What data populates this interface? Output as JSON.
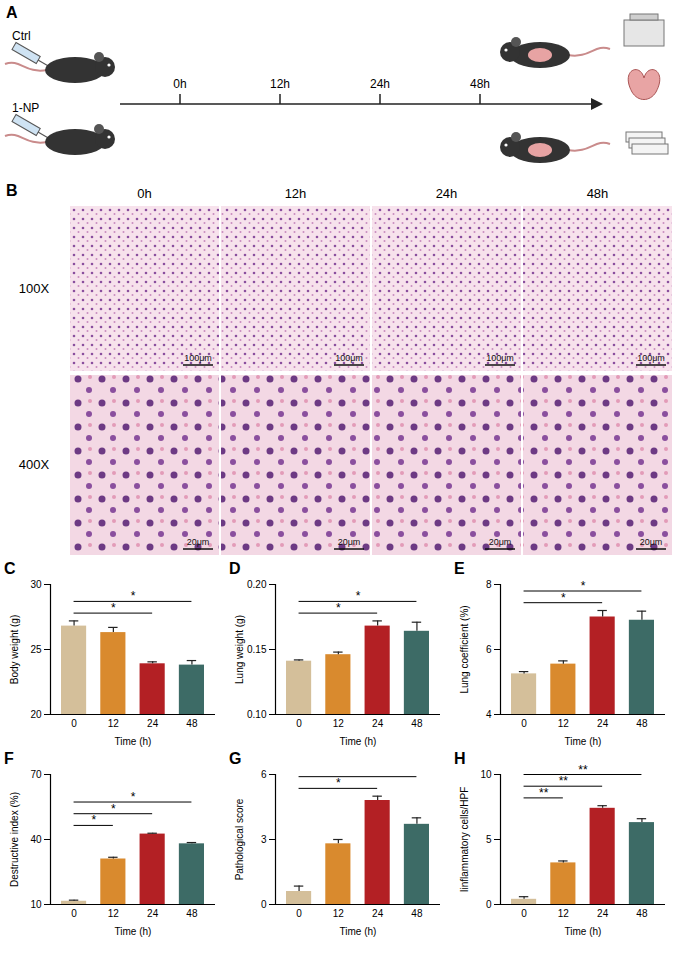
{
  "panel_a": {
    "panel": "A",
    "groups": [
      "Ctrl",
      "1-NP"
    ],
    "timepoints": [
      "0h",
      "12h",
      "24h",
      "48h"
    ]
  },
  "panel_b": {
    "panel": "B",
    "columns": [
      "0h",
      "12h",
      "24h",
      "48h"
    ],
    "rows": [
      "100X",
      "400X"
    ],
    "scale_bars": [
      "100μm",
      "20μm"
    ]
  },
  "chart_data": [
    {
      "panel": "C",
      "type": "bar",
      "ylabel": "Body weight (g)",
      "xlabel": "Time (h)",
      "categories": [
        "0",
        "12",
        "24",
        "48"
      ],
      "values": [
        26.8,
        26.3,
        23.9,
        23.8
      ],
      "errors": [
        0.4,
        0.4,
        0.15,
        0.35
      ],
      "colors": [
        "#d4bf9a",
        "#d98a2e",
        "#b32024",
        "#3d6b66"
      ],
      "ylim": [
        20,
        30
      ],
      "yticks": [
        20,
        25,
        30
      ],
      "comparisons": [
        {
          "from": "0",
          "to": "24",
          "label": "*"
        },
        {
          "from": "0",
          "to": "48",
          "label": "*"
        }
      ]
    },
    {
      "panel": "D",
      "type": "bar",
      "ylabel": "Lung weight (g)",
      "xlabel": "Time (h)",
      "categories": [
        "0",
        "12",
        "24",
        "48"
      ],
      "values": [
        0.141,
        0.146,
        0.168,
        0.164
      ],
      "errors": [
        0.001,
        0.002,
        0.004,
        0.007
      ],
      "colors": [
        "#d4bf9a",
        "#d98a2e",
        "#b32024",
        "#3d6b66"
      ],
      "ylim": [
        0.1,
        0.2
      ],
      "yticks": [
        {
          "value": 0.1,
          "label": "0.10"
        },
        0.15,
        {
          "value": 0.2,
          "label": "0.20"
        }
      ],
      "comparisons": [
        {
          "from": "0",
          "to": "24",
          "label": "*"
        },
        {
          "from": "0",
          "to": "48",
          "label": "*"
        }
      ]
    },
    {
      "panel": "E",
      "type": "bar",
      "ylabel": "Lung coefficient (%)",
      "xlabel": "Time (h)",
      "categories": [
        "0",
        "12",
        "24",
        "48"
      ],
      "values": [
        5.25,
        5.55,
        7.0,
        6.9
      ],
      "errors": [
        0.07,
        0.1,
        0.2,
        0.28
      ],
      "colors": [
        "#d4bf9a",
        "#d98a2e",
        "#b32024",
        "#3d6b66"
      ],
      "ylim": [
        4,
        8
      ],
      "yticks": [
        4,
        6,
        8
      ],
      "comparisons": [
        {
          "from": "0",
          "to": "24",
          "label": "*"
        },
        {
          "from": "0",
          "to": "48",
          "label": "*"
        }
      ]
    },
    {
      "panel": "F",
      "type": "bar",
      "ylabel": "Destructive index (%)",
      "xlabel": "Time (h)",
      "categories": [
        "0",
        "12",
        "24",
        "48"
      ],
      "values": [
        11.5,
        31,
        42.5,
        38
      ],
      "errors": [
        0.5,
        0.8,
        0.4,
        0.6
      ],
      "colors": [
        "#d4bf9a",
        "#d98a2e",
        "#b32024",
        "#3d6b66"
      ],
      "ylim": [
        10,
        70
      ],
      "yticks": [
        10,
        40,
        70
      ],
      "comparisons": [
        {
          "from": "0",
          "to": "12",
          "label": "*"
        },
        {
          "from": "0",
          "to": "24",
          "label": "*"
        },
        {
          "from": "0",
          "to": "48",
          "label": "*"
        }
      ]
    },
    {
      "panel": "G",
      "type": "bar",
      "ylabel": "Pathological score",
      "xlabel": "Time (h)",
      "categories": [
        "0",
        "12",
        "24",
        "48"
      ],
      "values": [
        0.6,
        2.8,
        4.8,
        3.7
      ],
      "errors": [
        0.25,
        0.2,
        0.2,
        0.3
      ],
      "colors": [
        "#d4bf9a",
        "#d98a2e",
        "#b32024",
        "#3d6b66"
      ],
      "ylim": [
        0,
        6
      ],
      "yticks": [
        0,
        3,
        6
      ],
      "comparisons": [
        {
          "from": "0",
          "to": "24",
          "label": "*"
        },
        {
          "from": "0",
          "to": "48"
        }
      ]
    },
    {
      "panel": "H",
      "type": "bar",
      "ylabel": "Iinflammatory cells/HPF",
      "xlabel": "Time (h)",
      "categories": [
        "0",
        "12",
        "24",
        "48"
      ],
      "values": [
        0.4,
        3.2,
        7.4,
        6.3
      ],
      "errors": [
        0.2,
        0.15,
        0.2,
        0.3
      ],
      "colors": [
        "#d4bf9a",
        "#d98a2e",
        "#b32024",
        "#3d6b66"
      ],
      "ylim": [
        0,
        10
      ],
      "yticks": [
        0,
        5,
        10
      ],
      "comparisons": [
        {
          "from": "0",
          "to": "12",
          "label": "**"
        },
        {
          "from": "0",
          "to": "24",
          "label": "**"
        },
        {
          "from": "0",
          "to": "48",
          "label": "**"
        }
      ]
    }
  ]
}
